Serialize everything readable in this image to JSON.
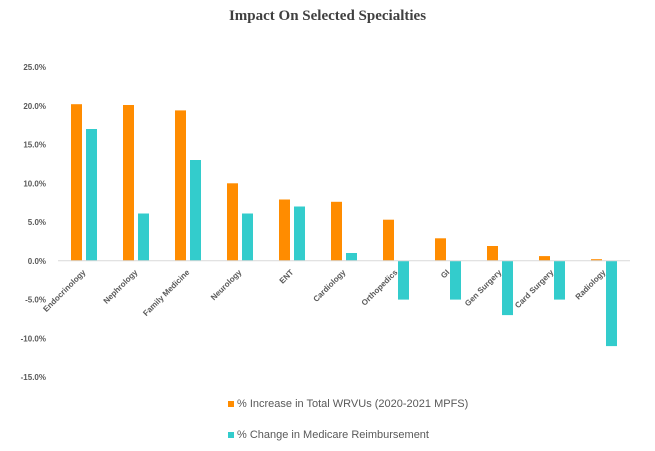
{
  "chart_data": {
    "type": "bar",
    "title": "Impact On Selected Specialties",
    "xlabel": "",
    "ylabel": "",
    "ylim": [
      -15,
      25
    ],
    "yticks": [
      "25.0%",
      "20.0%",
      "15.0%",
      "10.0%",
      "5.0%",
      "0.0%",
      "-5.0%",
      "-10.0%",
      "-15.0%"
    ],
    "grid": false,
    "legend_position": "bottom",
    "categories": [
      "Endocrinology",
      "Nephrology",
      "Family Medicine",
      "Neurology",
      "ENT",
      "Cardiology",
      "Orthopedics",
      "GI",
      "Gen Surgery",
      "Card Surgery",
      "Radiology"
    ],
    "series": [
      {
        "name": "% Increase in Total WRVUs (2020-2021 MPFS)",
        "color": "#FF8C00",
        "values": [
          20.2,
          20.1,
          19.4,
          10.0,
          7.9,
          7.6,
          5.3,
          2.9,
          1.9,
          0.6,
          0.2
        ]
      },
      {
        "name": "% Change in Medicare Reimbursement",
        "color": "#33CCCC",
        "values": [
          17.0,
          6.1,
          13.0,
          6.1,
          7.0,
          1.0,
          -5.0,
          -5.0,
          -7.0,
          -5.0,
          -11.0
        ]
      }
    ]
  }
}
